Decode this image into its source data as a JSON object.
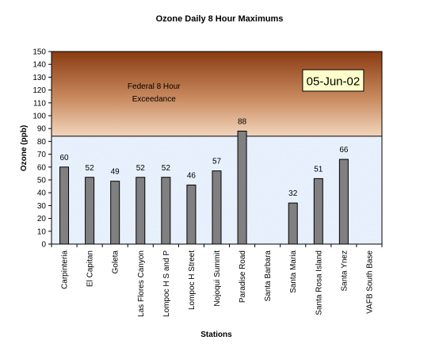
{
  "chart_data": {
    "type": "bar",
    "title": "Ozone Daily 8 Hour Maximums",
    "xlabel": "Stations",
    "ylabel": "Ozone (ppb)",
    "ylim": [
      0,
      150
    ],
    "ytick_step": 10,
    "categories": [
      "Carpinteria",
      "El Capitan",
      "Goleta",
      "Las Flores Canyon",
      "Lompoc H S and P",
      "Lompoc H Street",
      "Nojoqui Summit",
      "Paradise Road",
      "Santa Barbara",
      "Santa Maria",
      "Santa Rosa Island",
      "Santa Ynez",
      "VAFB South Base"
    ],
    "values": [
      60,
      52,
      49,
      52,
      52,
      46,
      57,
      88,
      null,
      32,
      51,
      66,
      null
    ],
    "threshold": {
      "value": 84,
      "label_line1": "Federal 8 Hour",
      "label_line2": "Exceedance"
    },
    "date_label": "05-Jun-02",
    "grid": false,
    "legend": "none",
    "colors": {
      "bar": "#808080",
      "exceed_top": "#8a3b12",
      "exceed_bottom": "#f2d5bd",
      "below_base": "#c8dcf5",
      "date_box": "#ffffcc"
    }
  }
}
